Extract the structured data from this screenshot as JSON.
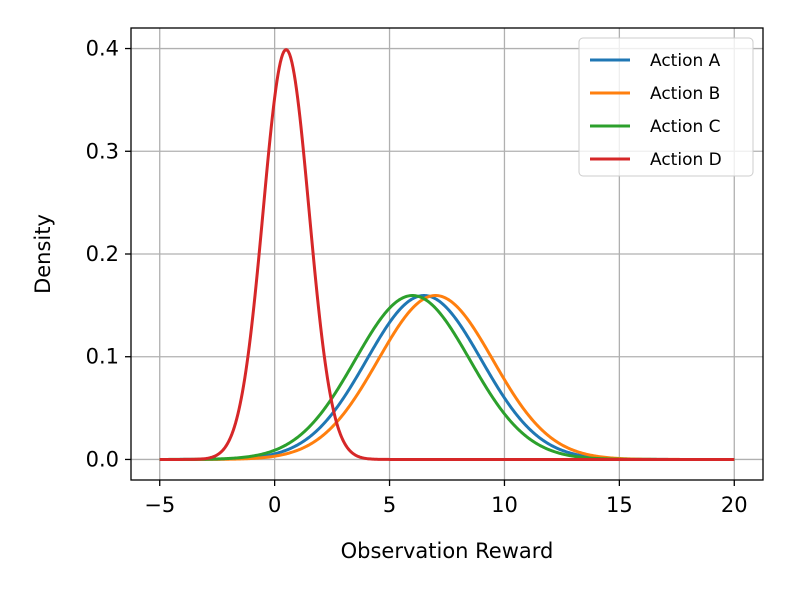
{
  "chart_data": {
    "type": "line",
    "title": "",
    "xlabel": "Observation Reward",
    "ylabel": "Density",
    "xlim": [
      -6.25,
      21.25
    ],
    "ylim": [
      -0.02,
      0.42
    ],
    "xticks": [
      -5,
      0,
      5,
      10,
      15,
      20
    ],
    "xtick_labels": [
      "−5",
      "0",
      "5",
      "10",
      "15",
      "20"
    ],
    "yticks": [
      0.0,
      0.1,
      0.2,
      0.3,
      0.4
    ],
    "ytick_labels": [
      "0.0",
      "0.1",
      "0.2",
      "0.3",
      "0.4"
    ],
    "grid": true,
    "legend_position": "top-right",
    "x_range": [
      -5,
      20
    ],
    "series": [
      {
        "name": "Action A",
        "color": "#1f77b4",
        "distribution": "normal",
        "mean": 6.5,
        "std": 2.5
      },
      {
        "name": "Action B",
        "color": "#ff7f0e",
        "distribution": "normal",
        "mean": 7.0,
        "std": 2.5
      },
      {
        "name": "Action C",
        "color": "#2ca02c",
        "distribution": "normal",
        "mean": 6.0,
        "std": 2.5
      },
      {
        "name": "Action D",
        "color": "#d62728",
        "distribution": "normal",
        "mean": 0.5,
        "std": 1.0
      }
    ]
  }
}
